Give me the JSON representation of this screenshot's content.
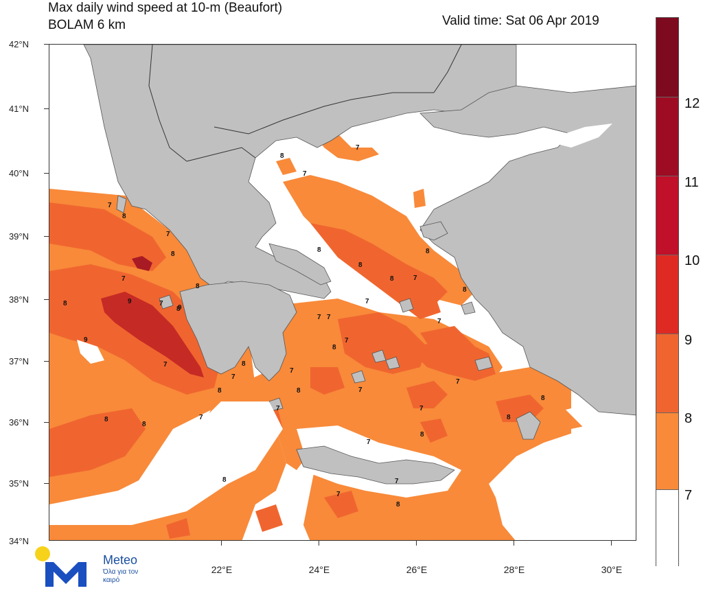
{
  "header": {
    "title": "Max daily wind speed at 10-m (Beaufort)",
    "model": "BOLAM 6 km",
    "valid_time": "Valid time: Sat 06 Apr 2019"
  },
  "axes": {
    "lat_labels": [
      "42°N",
      "41°N",
      "40°N",
      "39°N",
      "38°N",
      "37°N",
      "36°N",
      "35°N",
      "34°N"
    ],
    "lon_labels": [
      "22°E",
      "24°E",
      "26°E",
      "28°E",
      "30°E"
    ]
  },
  "colorbar": {
    "labels": [
      "12",
      "11",
      "10",
      "9",
      "8",
      "7"
    ],
    "colors": [
      "#7d0a1e",
      "#9e0c24",
      "#c0102a",
      "#de2a22",
      "#f0652f",
      "#f88a3a",
      "#ffffff"
    ]
  },
  "wind_labels": [
    "7",
    "8",
    "7",
    "8",
    "7",
    "8",
    "9",
    "7",
    "8",
    "9",
    "7",
    "9",
    "8",
    "8",
    "8",
    "7",
    "7",
    "8",
    "7",
    "8",
    "8",
    "7",
    "8",
    "8",
    "7",
    "7",
    "8",
    "8",
    "8",
    "7",
    "8",
    "7",
    "7",
    "7",
    "8",
    "7",
    "8",
    "7",
    "7",
    "7",
    "7",
    "8",
    "7",
    "7",
    "8",
    "7",
    "8",
    "8"
  ],
  "colors": {
    "land": "#c0c0c0",
    "sea_calm": "#ffffff",
    "bft7": "#f88a3a",
    "bft8": "#f0652f",
    "bft9": "#c62a25",
    "bft10": "#a81a24"
  },
  "logo": {
    "brand": "Meteo",
    "slogan": "Όλα για τον καιρό"
  }
}
